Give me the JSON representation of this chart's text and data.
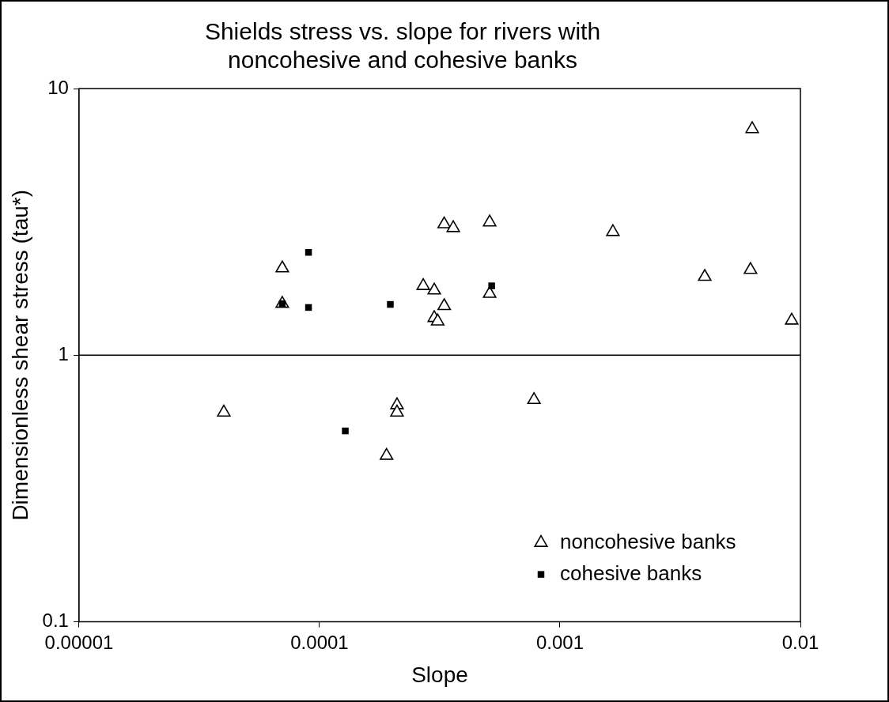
{
  "chart_data": {
    "type": "scatter",
    "title": "Shields stress vs. slope for rivers with noncohesive and cohesive banks",
    "xlabel": "Slope",
    "ylabel": "Dimensionless shear stress (tau*)",
    "log": "xy",
    "grid": false,
    "legend": "bottom right",
    "xlim": [
      1e-05,
      0.01
    ],
    "xticks": [
      {
        "value": 1e-05,
        "label": "0.00001"
      },
      {
        "value": 0.0001,
        "label": "0.0001"
      },
      {
        "value": 0.001,
        "label": "0.001"
      },
      {
        "value": 0.01,
        "label": "0.01"
      }
    ],
    "ylim": [
      0.1,
      10
    ],
    "yticks": [
      0.1,
      1,
      10
    ],
    "ref_lines": [
      {
        "axis": "y",
        "value": 1,
        "color": "#000000"
      }
    ],
    "series": [
      {
        "name": "noncohesive banks",
        "color": "#000000",
        "marker": "triangle",
        "x": [
          4e-05,
          7e-05,
          7e-05,
          0.00019,
          0.00021,
          0.00021,
          0.00027,
          0.0003,
          0.00033,
          0.0003,
          0.00031,
          0.00033,
          0.00036,
          0.00051,
          0.00051,
          0.00078,
          0.00166,
          0.004,
          0.0062,
          0.0063,
          0.0092
        ],
        "values": [
          0.61,
          2.12,
          1.56,
          0.42,
          0.65,
          0.61,
          1.82,
          1.75,
          1.53,
          1.38,
          1.34,
          3.1,
          3.0,
          3.15,
          1.7,
          0.68,
          2.9,
          1.97,
          2.09,
          7.05,
          1.35
        ]
      },
      {
        "name": "cohesive banks",
        "color": "#000000",
        "marker": "square",
        "x": [
          7e-05,
          9e-05,
          9e-05,
          0.000128,
          0.000197,
          0.00052
        ],
        "values": [
          1.56,
          2.43,
          1.51,
          0.52,
          1.55,
          1.82
        ]
      }
    ]
  }
}
